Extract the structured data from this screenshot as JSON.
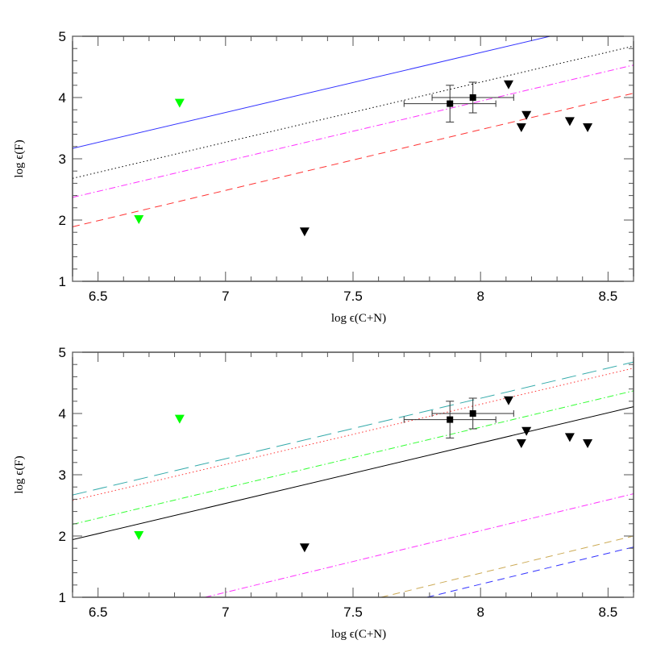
{
  "chart_data": [
    {
      "type": "scatter",
      "panel": "top",
      "title": "",
      "xlabel": "log ε(C+N)",
      "ylabel": "log ε(F)",
      "xlim": [
        6.4,
        8.6
      ],
      "ylim": [
        1,
        5
      ],
      "xticks": [
        "6.5",
        "7",
        "7.5",
        "8",
        "8.5"
      ],
      "yticks": [
        "1",
        "2",
        "3",
        "4",
        "5"
      ],
      "grid": false,
      "legend": null,
      "lines": [
        {
          "name": "blue-solid",
          "color": "#3333ff",
          "style": "solid",
          "x": [
            6.4,
            8.6
          ],
          "y": [
            3.17,
            5.32
          ]
        },
        {
          "name": "black-dotted",
          "color": "#000000",
          "style": "dotted",
          "x": [
            6.4,
            8.6
          ],
          "y": [
            2.68,
            4.84
          ]
        },
        {
          "name": "magenta-dash-dot",
          "color": "#ff33ff",
          "style": "dashdot",
          "x": [
            6.4,
            8.6
          ],
          "y": [
            2.37,
            4.53
          ]
        },
        {
          "name": "red-dashed",
          "color": "#ff3333",
          "style": "dashed",
          "x": [
            6.4,
            8.6
          ],
          "y": [
            1.89,
            4.07
          ]
        }
      ],
      "series": [
        {
          "name": "green-upper-limits",
          "marker": "triangle-down",
          "color": "#00ff00",
          "x": [
            6.66,
            6.82
          ],
          "y": [
            2.0,
            3.9
          ]
        },
        {
          "name": "black-upper-limits",
          "marker": "triangle-down",
          "color": "#000000",
          "x": [
            7.31,
            8.11,
            8.18,
            8.16,
            8.35,
            8.42
          ],
          "y": [
            1.8,
            4.2,
            3.7,
            3.5,
            3.6,
            3.5
          ]
        },
        {
          "name": "detections",
          "marker": "square",
          "color": "#000000",
          "x": [
            7.88,
            7.97
          ],
          "y": [
            3.9,
            4.0
          ],
          "xerr": [
            0.18,
            0.16
          ],
          "yerr": [
            0.3,
            0.25
          ]
        }
      ]
    },
    {
      "type": "scatter",
      "panel": "bottom",
      "title": "",
      "xlabel": "log ε(C+N)",
      "ylabel": "log ε(F)",
      "xlim": [
        6.4,
        8.6
      ],
      "ylim": [
        1,
        5
      ],
      "xticks": [
        "6.5",
        "7",
        "7.5",
        "8",
        "8.5"
      ],
      "yticks": [
        "1",
        "2",
        "3",
        "4",
        "5"
      ],
      "grid": false,
      "legend": null,
      "lines": [
        {
          "name": "cyan-long-dash",
          "color": "#33aaaa",
          "style": "longdash",
          "x": [
            6.4,
            8.6
          ],
          "y": [
            2.67,
            4.84
          ]
        },
        {
          "name": "red-dotted",
          "color": "#ff3333",
          "style": "dotted",
          "x": [
            6.4,
            8.6
          ],
          "y": [
            2.58,
            4.74
          ]
        },
        {
          "name": "green-dash-dot",
          "color": "#33ff33",
          "style": "dashdot",
          "x": [
            6.4,
            8.6
          ],
          "y": [
            2.19,
            4.37
          ]
        },
        {
          "name": "black-solid",
          "color": "#000000",
          "style": "solid",
          "x": [
            6.4,
            8.6
          ],
          "y": [
            1.94,
            4.11
          ]
        },
        {
          "name": "magenta-dash-dot",
          "color": "#ff33ff",
          "style": "dashdot",
          "x": [
            6.92,
            8.6
          ],
          "y": [
            1.0,
            2.69
          ]
        },
        {
          "name": "tan-dashed",
          "color": "#ccaa55",
          "style": "dashed",
          "x": [
            7.61,
            8.6
          ],
          "y": [
            1.0,
            2.0
          ]
        },
        {
          "name": "blue-dashed",
          "color": "#3333ff",
          "style": "dashed",
          "x": [
            7.79,
            8.6
          ],
          "y": [
            1.0,
            1.82
          ]
        }
      ],
      "series": [
        {
          "name": "green-upper-limits",
          "marker": "triangle-down",
          "color": "#00ff00",
          "x": [
            6.66,
            6.82
          ],
          "y": [
            2.0,
            3.9
          ]
        },
        {
          "name": "black-upper-limits",
          "marker": "triangle-down",
          "color": "#000000",
          "x": [
            7.31,
            8.11,
            8.18,
            8.16,
            8.35,
            8.42
          ],
          "y": [
            1.8,
            4.2,
            3.7,
            3.5,
            3.6,
            3.5
          ]
        },
        {
          "name": "detections",
          "marker": "square",
          "color": "#000000",
          "x": [
            7.88,
            7.97
          ],
          "y": [
            3.9,
            4.0
          ],
          "xerr": [
            0.18,
            0.16
          ],
          "yerr": [
            0.3,
            0.25
          ]
        }
      ]
    }
  ],
  "labels": {
    "top_xlabel": "log  ϵ(C+N)",
    "top_ylabel": "log  ϵ(F)",
    "bottom_xlabel": "log  ϵ(C+N)",
    "bottom_ylabel": "log  ϵ(F)"
  }
}
